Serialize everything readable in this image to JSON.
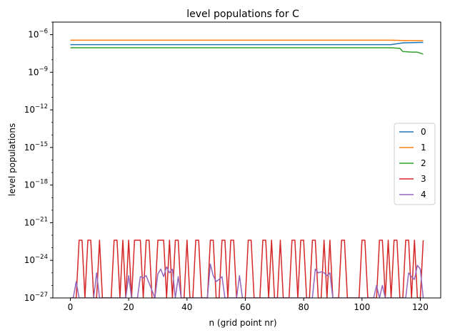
{
  "chart_data": {
    "type": "line",
    "title": "level populations for C",
    "xlabel": "n (grid point nr)",
    "ylabel": "level populations",
    "yscale": "log",
    "xlim": [
      -6,
      127
    ],
    "ylim": [
      1e-27,
      1e-05
    ],
    "x_ticks": [
      0,
      20,
      40,
      60,
      80,
      100,
      120
    ],
    "y_ticks": [
      {
        "base": "10",
        "exp": "−27",
        "value": 1e-27
      },
      {
        "base": "10",
        "exp": "−24",
        "value": 1e-24
      },
      {
        "base": "10",
        "exp": "−21",
        "value": 1e-21
      },
      {
        "base": "10",
        "exp": "−18",
        "value": 1e-18
      },
      {
        "base": "10",
        "exp": "−15",
        "value": 1e-15
      },
      {
        "base": "10",
        "exp": "−12",
        "value": 1e-12
      },
      {
        "base": "10",
        "exp": "−9",
        "value": 1e-09
      },
      {
        "base": "10",
        "exp": "−6",
        "value": 1e-06
      }
    ],
    "legend_position": "center-right",
    "series": [
      {
        "name": "0",
        "color": "#1f77b4",
        "x": [
          0,
          60,
          110,
          114,
          117,
          120,
          121
        ],
        "y": [
          1.6e-07,
          1.6e-07,
          1.6e-07,
          2.2e-07,
          2.3e-07,
          2.4e-07,
          2.4e-07
        ]
      },
      {
        "name": "1",
        "color": "#ff7f0e",
        "x": [
          0,
          60,
          110,
          115,
          121
        ],
        "y": [
          3.6e-07,
          3.6e-07,
          3.6e-07,
          3.4e-07,
          3.3e-07
        ]
      },
      {
        "name": "2",
        "color": "#2ca02c",
        "x": [
          0,
          60,
          110,
          113,
          114,
          117,
          119,
          121
        ],
        "y": [
          9e-08,
          9e-08,
          9e-08,
          8e-08,
          4.5e-08,
          4e-08,
          4e-08,
          2.8e-08
        ]
      },
      {
        "name": "3",
        "color": "#d62728",
        "spikes": [
          3,
          4,
          6,
          7,
          10,
          15,
          16,
          18,
          20,
          22,
          23,
          24,
          26,
          27,
          30,
          31,
          32,
          34,
          36,
          37,
          40,
          43,
          44,
          48,
          49,
          52,
          53,
          55,
          56,
          61,
          62,
          66,
          67,
          69,
          72,
          76,
          77,
          79,
          80,
          83,
          84,
          87,
          89,
          93,
          94,
          100,
          101,
          106,
          107,
          109,
          111,
          112,
          115,
          116,
          118,
          121
        ],
        "peak": 4e-23,
        "floor": 1e-27
      },
      {
        "name": "4",
        "color": "#9467bd",
        "x": [
          0,
          1,
          2,
          3,
          8,
          9,
          10,
          19,
          20,
          21,
          22,
          23,
          24,
          25,
          26,
          29,
          30,
          31,
          32,
          33,
          34,
          35,
          36,
          37,
          38,
          47,
          48,
          49,
          50,
          51,
          52,
          53,
          57,
          58,
          59,
          83,
          84,
          85,
          86,
          87,
          88,
          89,
          90,
          104,
          105,
          106,
          107,
          108,
          115,
          116,
          117,
          118,
          119,
          120,
          121
        ],
        "y": [
          1e-27,
          1e-27,
          2e-26,
          1e-27,
          1e-27,
          1e-25,
          1e-27,
          1e-27,
          6e-26,
          1e-27,
          1e-27,
          1e-27,
          5e-26,
          4e-26,
          6e-26,
          1e-27,
          8e-26,
          2e-25,
          5e-26,
          3e-25,
          1e-25,
          2e-25,
          1e-27,
          5e-26,
          1e-27,
          1e-27,
          5e-25,
          6e-26,
          2e-26,
          3e-26,
          5e-26,
          1e-27,
          1e-27,
          6e-26,
          1e-27,
          1e-27,
          2e-25,
          1e-25,
          1.2e-25,
          1e-25,
          6e-26,
          1e-25,
          1e-27,
          1e-27,
          1e-26,
          1e-27,
          1e-26,
          1e-27,
          1e-27,
          1e-25,
          5e-26,
          3e-26,
          4e-25,
          2e-25,
          1e-27
        ]
      }
    ]
  }
}
